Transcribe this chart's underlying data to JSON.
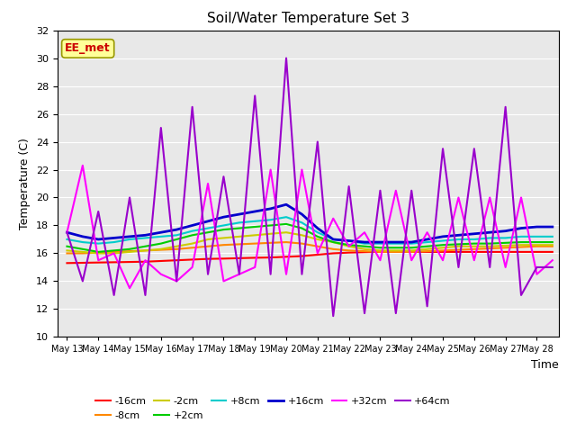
{
  "title": "Soil/Water Temperature Set 3",
  "xlabel": "Time",
  "ylabel": "Temperature (C)",
  "ylim": [
    10,
    32
  ],
  "yticks": [
    10,
    12,
    14,
    16,
    18,
    20,
    22,
    24,
    26,
    28,
    30,
    32
  ],
  "x_labels": [
    "May 13",
    "May 14",
    "May 15",
    "May 16",
    "May 17",
    "May 18",
    "May 19",
    "May 20",
    "May 21",
    "May 22",
    "May 23",
    "May 24",
    "May 25",
    "May 26",
    "May 27",
    "May 28"
  ],
  "annotation_text": "EE_met",
  "annotation_color": "#cc0000",
  "annotation_bg": "#ffff99",
  "annotation_border": "#999900",
  "bg_color": "#e8e8e8",
  "grid_color": "#ffffff",
  "series_names": [
    "-16cm",
    "-8cm",
    "-2cm",
    "+2cm",
    "+8cm",
    "+16cm",
    "+32cm",
    "+64cm"
  ],
  "series_colors": [
    "#ff0000",
    "#ff8800",
    "#cccc00",
    "#00cc00",
    "#00cccc",
    "#0000cc",
    "#ff00ff",
    "#9900cc"
  ],
  "series_linewidths": [
    1.5,
    1.5,
    1.5,
    1.5,
    1.5,
    2.0,
    1.5,
    1.5
  ],
  "n_pts": 32,
  "slow_series": {
    "-16cm": [
      15.3,
      15.32,
      15.34,
      15.36,
      15.38,
      15.4,
      15.45,
      15.5,
      15.55,
      15.6,
      15.62,
      15.65,
      15.68,
      15.7,
      15.75,
      15.8,
      15.9,
      16.0,
      16.05,
      16.08,
      16.1,
      16.1,
      16.1,
      16.1,
      16.1,
      16.1,
      16.1,
      16.1,
      16.1,
      16.1,
      16.1,
      16.1
    ],
    "-8cm": [
      16.0,
      16.0,
      16.05,
      16.1,
      16.15,
      16.2,
      16.25,
      16.3,
      16.4,
      16.5,
      16.6,
      16.65,
      16.7,
      16.75,
      16.8,
      16.7,
      16.5,
      16.3,
      16.2,
      16.15,
      16.1,
      16.1,
      16.1,
      16.15,
      16.2,
      16.25,
      16.3,
      16.35,
      16.4,
      16.45,
      16.5,
      16.5
    ],
    "-2cm": [
      16.2,
      16.1,
      16.0,
      16.0,
      16.1,
      16.2,
      16.3,
      16.5,
      16.7,
      17.0,
      17.1,
      17.2,
      17.3,
      17.4,
      17.5,
      17.3,
      17.0,
      16.8,
      16.5,
      16.3,
      16.2,
      16.2,
      16.2,
      16.3,
      16.4,
      16.5,
      16.5,
      16.5,
      16.55,
      16.6,
      16.6,
      16.6
    ],
    "+2cm": [
      16.5,
      16.3,
      16.1,
      16.2,
      16.3,
      16.5,
      16.7,
      17.0,
      17.3,
      17.5,
      17.7,
      17.8,
      17.9,
      18.0,
      18.1,
      17.8,
      17.2,
      16.8,
      16.6,
      16.5,
      16.4,
      16.4,
      16.4,
      16.5,
      16.6,
      16.65,
      16.7,
      16.7,
      16.75,
      16.8,
      16.8,
      16.8
    ],
    "+8cm": [
      17.0,
      16.8,
      16.7,
      16.8,
      17.0,
      17.1,
      17.2,
      17.3,
      17.6,
      17.8,
      18.0,
      18.2,
      18.3,
      18.4,
      18.6,
      18.2,
      17.5,
      17.0,
      16.9,
      16.7,
      16.7,
      16.7,
      16.7,
      16.8,
      16.9,
      17.0,
      17.0,
      17.1,
      17.1,
      17.2,
      17.2,
      17.2
    ],
    "+16cm": [
      17.5,
      17.2,
      17.0,
      17.1,
      17.2,
      17.3,
      17.5,
      17.7,
      18.0,
      18.3,
      18.6,
      18.8,
      19.0,
      19.2,
      19.5,
      18.8,
      17.8,
      17.0,
      16.9,
      16.8,
      16.8,
      16.8,
      16.8,
      17.0,
      17.2,
      17.3,
      17.4,
      17.5,
      17.6,
      17.8,
      17.9,
      17.9
    ]
  },
  "plus32_x": [
    0,
    0.5,
    1,
    1.5,
    2,
    2.5,
    3,
    3.5,
    4,
    4.5,
    5,
    5.5,
    6,
    6.5,
    7,
    7.5,
    8,
    8.5,
    9,
    9.5,
    10,
    10.5,
    11,
    11.5,
    12,
    12.5,
    13,
    13.5,
    14,
    14.5,
    15,
    15.5
  ],
  "plus32_y": [
    17.5,
    22.3,
    15.5,
    16.0,
    13.5,
    15.5,
    14.5,
    14.0,
    15.0,
    21.0,
    14.0,
    14.5,
    15.0,
    22.0,
    14.5,
    22.0,
    16.0,
    18.5,
    16.5,
    17.5,
    15.5,
    20.5,
    15.5,
    17.5,
    15.5,
    20.0,
    15.5,
    20.0,
    15.0,
    20.0,
    14.5,
    15.5
  ],
  "plus64_x": [
    0,
    0.5,
    1,
    1.5,
    2,
    2.5,
    3,
    3.5,
    4,
    4.5,
    5,
    5.5,
    6,
    6.5,
    7,
    7.5,
    8,
    8.5,
    9,
    9.5,
    10,
    10.5,
    11,
    11.5,
    12,
    12.5,
    13,
    13.5,
    14,
    14.5,
    15,
    15.5
  ],
  "plus64_y": [
    17.5,
    14.0,
    19.0,
    13.0,
    20.0,
    13.0,
    25.0,
    14.0,
    26.5,
    14.5,
    21.5,
    14.5,
    27.3,
    14.5,
    30.0,
    14.5,
    24.0,
    11.5,
    20.8,
    11.7,
    20.5,
    11.7,
    20.5,
    12.2,
    23.5,
    15.0,
    23.5,
    15.0,
    26.5,
    13.0,
    15.0,
    15.0
  ]
}
